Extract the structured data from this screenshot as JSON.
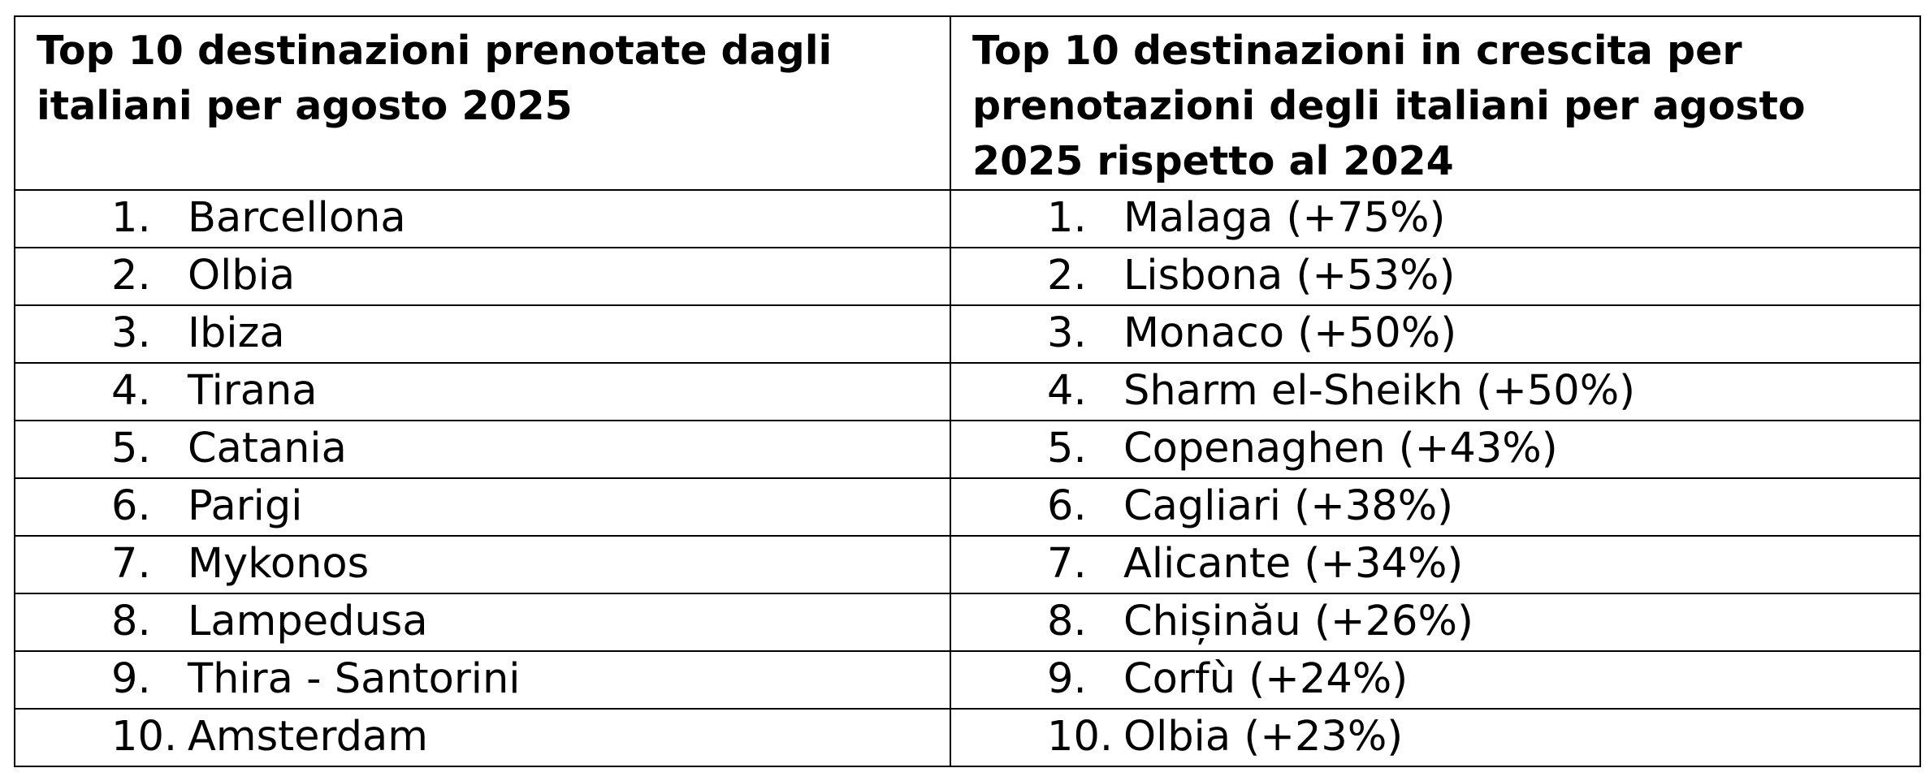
{
  "table": {
    "headers": [
      "Top 10 destinazioni prenotate dagli italiani per agosto 2025",
      "Top 10 destinazioni in crescita per prenotazioni degli italiani per agosto 2025 rispetto al 2024"
    ],
    "rows": [
      {
        "left": {
          "num": "1.",
          "name": "Barcellona"
        },
        "right": {
          "num": "1.",
          "name": "Malaga (+75%)"
        }
      },
      {
        "left": {
          "num": "2.",
          "name": "Olbia"
        },
        "right": {
          "num": "2.",
          "name": "Lisbona (+53%)"
        }
      },
      {
        "left": {
          "num": "3.",
          "name": "Ibiza"
        },
        "right": {
          "num": "3.",
          "name": "Monaco (+50%)"
        }
      },
      {
        "left": {
          "num": "4.",
          "name": "Tirana"
        },
        "right": {
          "num": "4.",
          "name": "Sharm el-Sheikh (+50%)"
        }
      },
      {
        "left": {
          "num": "5.",
          "name": "Catania"
        },
        "right": {
          "num": "5.",
          "name": "Copenaghen (+43%)"
        }
      },
      {
        "left": {
          "num": "6.",
          "name": "Parigi"
        },
        "right": {
          "num": "6.",
          "name": "Cagliari (+38%)"
        }
      },
      {
        "left": {
          "num": "7.",
          "name": "Mykonos"
        },
        "right": {
          "num": "7.",
          "name": "Alicante (+34%)"
        }
      },
      {
        "left": {
          "num": "8.",
          "name": "Lampedusa"
        },
        "right": {
          "num": "8.",
          "name": "Chișinău (+26%)"
        }
      },
      {
        "left": {
          "num": "9.",
          "name": "Thira - Santorini"
        },
        "right": {
          "num": "9.",
          "name": "Corfù (+24%)"
        }
      },
      {
        "left": {
          "num": "10.",
          "name": "Amsterdam"
        },
        "right": {
          "num": "10.",
          "name": "Olbia (+23%)"
        }
      }
    ]
  }
}
